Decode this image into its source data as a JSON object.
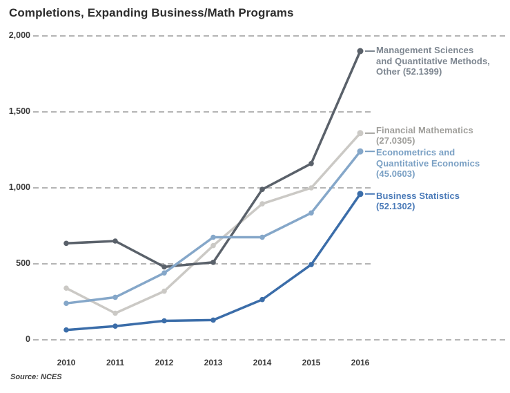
{
  "title": "Completions, Expanding Business/Math Programs",
  "source": "Source: NCES",
  "colors": {
    "background": "#ffffff",
    "title_text": "#2d2d2d",
    "axis_text": "#3a3a3a",
    "grid": "#b4b4b4"
  },
  "chart_data": {
    "type": "line",
    "title": "Completions, Expanding Business/Math Programs",
    "xlabel": "",
    "ylabel": "",
    "x": [
      "2010",
      "2011",
      "2012",
      "2013",
      "2014",
      "2015",
      "2016"
    ],
    "ylim": [
      0,
      2000
    ],
    "yticks": [
      0,
      500,
      1000,
      1500,
      2000
    ],
    "ytick_labels": [
      "0",
      "500",
      "1,000",
      "1,500",
      "2,000"
    ],
    "grid": "horizontal dashed",
    "legend_position": "right of line endpoints",
    "series": [
      {
        "name": "Management Sciences and Quantitative Methods, Other (52.1399)",
        "label_lines": [
          "Management Sciences",
          "and Quantitative Methods,",
          "Other (52.1399)"
        ],
        "color": "#5a616a",
        "label_color": "#7d8690",
        "values": [
          635,
          650,
          480,
          510,
          990,
          1160,
          1900
        ]
      },
      {
        "name": "Financial Mathematics (27.0305)",
        "label_lines": [
          "Financial Mathematics",
          "(27.0305)"
        ],
        "color": "#cbc9c5",
        "label_color": "#9f9e9a",
        "values": [
          340,
          175,
          320,
          620,
          895,
          1000,
          1360
        ]
      },
      {
        "name": "Econometrics and Quantitative Economics (45.0603)",
        "label_lines": [
          "Econometrics and",
          "Quantitative Economics",
          "(45.0603)"
        ],
        "color": "#85a7c9",
        "label_color": "#7aa0c4",
        "values": [
          240,
          280,
          440,
          675,
          675,
          835,
          1240
        ]
      },
      {
        "name": "Business Statistics (52.1302)",
        "label_lines": [
          "Business Statistics",
          "(52.1302)"
        ],
        "color": "#3b6da9",
        "label_color": "#4a7ab8",
        "values": [
          65,
          90,
          125,
          130,
          265,
          495,
          960
        ]
      }
    ]
  }
}
